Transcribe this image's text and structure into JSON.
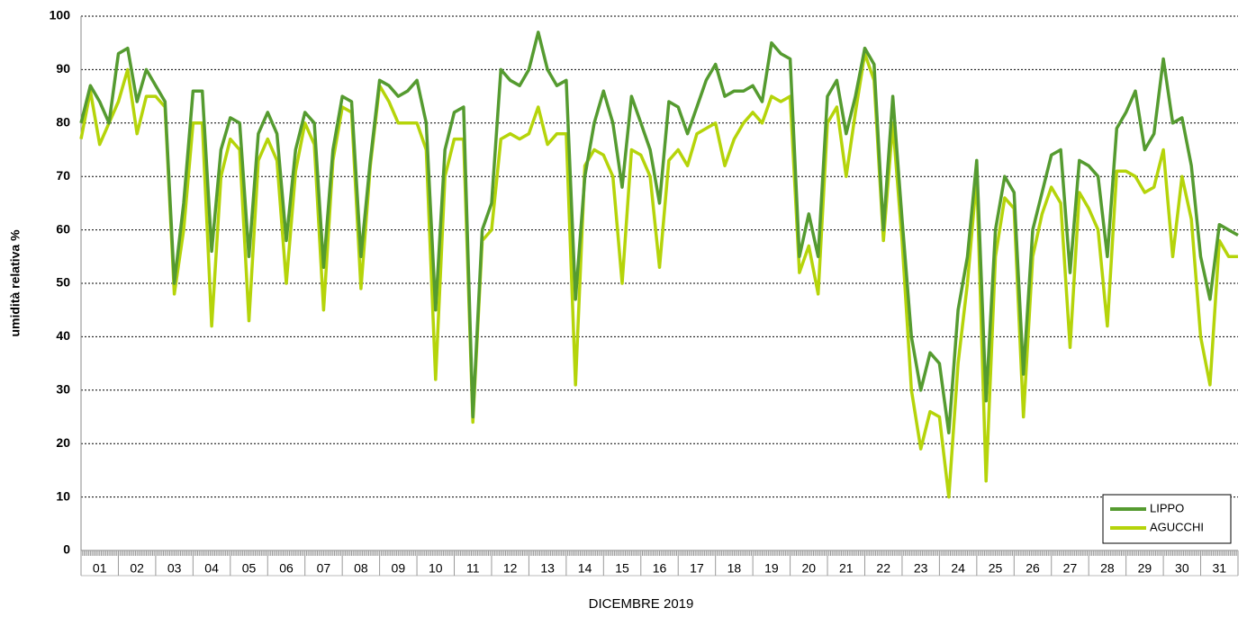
{
  "chart_data": {
    "type": "line",
    "y_label": "umidità relativa %",
    "x_label": "DICEMBRE 2019",
    "xlim": [
      0,
      31
    ],
    "xticks": [
      {
        "value": 0.5,
        "label": "01"
      },
      {
        "value": 1.5,
        "label": "02"
      },
      {
        "value": 2.5,
        "label": "03"
      },
      {
        "value": 3.5,
        "label": "04"
      },
      {
        "value": 4.5,
        "label": "05"
      },
      {
        "value": 5.5,
        "label": "06"
      },
      {
        "value": 6.5,
        "label": "07"
      },
      {
        "value": 7.5,
        "label": "08"
      },
      {
        "value": 8.5,
        "label": "09"
      },
      {
        "value": 9.5,
        "label": "10"
      },
      {
        "value": 10.5,
        "label": "11"
      },
      {
        "value": 11.5,
        "label": "12"
      },
      {
        "value": 12.5,
        "label": "13"
      },
      {
        "value": 13.5,
        "label": "14"
      },
      {
        "value": 14.5,
        "label": "15"
      },
      {
        "value": 15.5,
        "label": "16"
      },
      {
        "value": 16.5,
        "label": "17"
      },
      {
        "value": 17.5,
        "label": "18"
      },
      {
        "value": 18.5,
        "label": "19"
      },
      {
        "value": 19.5,
        "label": "20"
      },
      {
        "value": 20.5,
        "label": "21"
      },
      {
        "value": 21.5,
        "label": "22"
      },
      {
        "value": 22.5,
        "label": "23"
      },
      {
        "value": 23.5,
        "label": "24"
      },
      {
        "value": 24.5,
        "label": "25"
      },
      {
        "value": 25.5,
        "label": "26"
      },
      {
        "value": 26.5,
        "label": "27"
      },
      {
        "value": 27.5,
        "label": "28"
      },
      {
        "value": 28.5,
        "label": "29"
      },
      {
        "value": 29.5,
        "label": "30"
      },
      {
        "value": 30.5,
        "label": "31"
      }
    ],
    "ylim": [
      0,
      100
    ],
    "yticks": [
      0,
      10,
      20,
      30,
      40,
      50,
      60,
      70,
      80,
      90,
      100
    ],
    "grid": true,
    "legend": "lower right",
    "x": [
      0,
      0.25,
      0.5,
      0.75,
      1,
      1.25,
      1.5,
      1.75,
      2,
      2.25,
      2.5,
      2.75,
      3,
      3.25,
      3.5,
      3.75,
      4,
      4.25,
      4.5,
      4.75,
      5,
      5.25,
      5.5,
      5.75,
      6,
      6.25,
      6.5,
      6.75,
      7,
      7.25,
      7.5,
      7.75,
      8,
      8.25,
      8.5,
      8.75,
      9,
      9.25,
      9.5,
      9.75,
      10,
      10.25,
      10.5,
      10.75,
      11,
      11.25,
      11.5,
      11.75,
      12,
      12.25,
      12.5,
      12.75,
      13,
      13.25,
      13.5,
      13.75,
      14,
      14.25,
      14.5,
      14.75,
      15,
      15.25,
      15.5,
      15.75,
      16,
      16.25,
      16.5,
      16.75,
      17,
      17.25,
      17.5,
      17.75,
      18,
      18.25,
      18.5,
      18.75,
      19,
      19.25,
      19.5,
      19.75,
      20,
      20.25,
      20.5,
      20.75,
      21,
      21.25,
      21.5,
      21.75,
      22,
      22.25,
      22.5,
      22.75,
      23,
      23.25,
      23.5,
      23.75,
      24,
      24.25,
      24.5,
      24.75,
      25,
      25.25,
      25.5,
      25.75,
      26,
      26.25,
      26.5,
      26.75,
      27,
      27.25,
      27.5,
      27.75,
      28,
      28.25,
      28.5,
      28.75,
      29,
      29.25,
      29.5,
      29.75,
      30,
      30.25,
      30.5,
      30.75,
      31
    ],
    "series": [
      {
        "name": "LIPPO",
        "color": "#559b30",
        "values": [
          80,
          87,
          84,
          80,
          93,
          94,
          84,
          90,
          87,
          84,
          50,
          65,
          86,
          86,
          56,
          75,
          81,
          80,
          55,
          78,
          82,
          78,
          58,
          75,
          82,
          80,
          53,
          75,
          85,
          84,
          55,
          73,
          88,
          87,
          85,
          86,
          88,
          80,
          45,
          75,
          82,
          83,
          25,
          60,
          65,
          90,
          88,
          87,
          90,
          97,
          90,
          87,
          88,
          47,
          70,
          80,
          86,
          80,
          68,
          85,
          80,
          75,
          65,
          84,
          83,
          78,
          83,
          88,
          91,
          85,
          86,
          86,
          87,
          84,
          95,
          93,
          92,
          55,
          63,
          55,
          85,
          88,
          78,
          85,
          94,
          91,
          60,
          85,
          62,
          40,
          30,
          37,
          35,
          22,
          45,
          55,
          73,
          28,
          60,
          70,
          67,
          33,
          60,
          67,
          74,
          75,
          52,
          73,
          72,
          70,
          55,
          79,
          82,
          86,
          75,
          78,
          92,
          80,
          81,
          72,
          55,
          47,
          61,
          60,
          59
        ]
      },
      {
        "name": "AGUCCHI",
        "color": "#b5d40a",
        "values": [
          77,
          86,
          76,
          80,
          84,
          90,
          78,
          85,
          85,
          83,
          48,
          60,
          80,
          80,
          42,
          70,
          77,
          75,
          43,
          73,
          77,
          73,
          50,
          71,
          80,
          76,
          45,
          73,
          83,
          82,
          49,
          72,
          87,
          84,
          80,
          80,
          80,
          75,
          32,
          70,
          77,
          77,
          24,
          58,
          60,
          77,
          78,
          77,
          78,
          83,
          76,
          78,
          78,
          31,
          72,
          75,
          74,
          70,
          50,
          75,
          74,
          70,
          53,
          73,
          75,
          72,
          78,
          79,
          80,
          72,
          77,
          80,
          82,
          80,
          85,
          84,
          85,
          52,
          57,
          48,
          80,
          83,
          70,
          82,
          93,
          88,
          58,
          80,
          58,
          30,
          19,
          26,
          25,
          10,
          35,
          50,
          70,
          13,
          55,
          66,
          64,
          25,
          55,
          63,
          68,
          65,
          38,
          67,
          64,
          60,
          42,
          71,
          71,
          70,
          67,
          68,
          75,
          55,
          70,
          62,
          40,
          31,
          58,
          55,
          55
        ]
      }
    ]
  }
}
